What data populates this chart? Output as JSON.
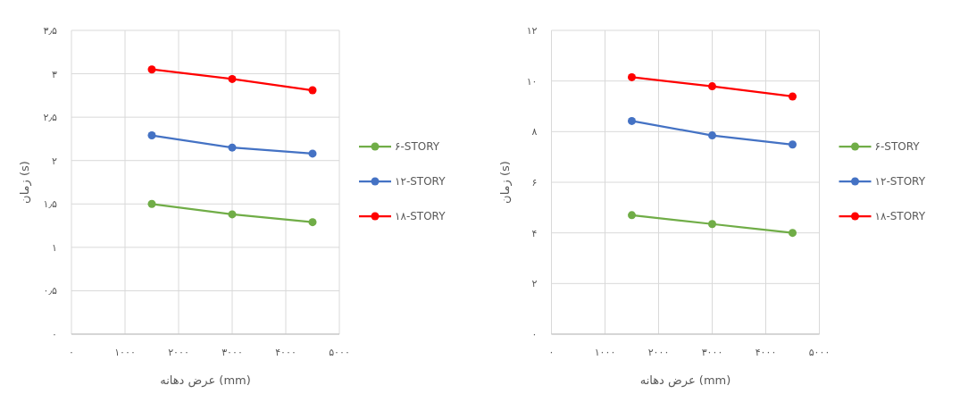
{
  "chart_data": [
    {
      "type": "line",
      "xlabel": "عرض دهانه (mm)",
      "ylabel": "زمان (s)",
      "x": [
        1500,
        3000,
        4500
      ],
      "series": [
        {
          "name": "۶-STORY",
          "color": "#70ad47",
          "values": [
            1.5,
            1.38,
            1.29
          ]
        },
        {
          "name": "۱۲-STORY",
          "color": "#4472c4",
          "values": [
            2.29,
            2.15,
            2.08
          ]
        },
        {
          "name": "۱۸-STORY",
          "color": "#ff0000",
          "values": [
            3.05,
            2.94,
            2.81
          ]
        }
      ],
      "xlim": [
        0,
        5000
      ],
      "ylim": [
        0,
        3.5
      ],
      "xticks": [
        {
          "value": 0,
          "label": "۰"
        },
        {
          "value": 1000,
          "label": "۱۰۰۰"
        },
        {
          "value": 2000,
          "label": "۲۰۰۰"
        },
        {
          "value": 3000,
          "label": "۳۰۰۰"
        },
        {
          "value": 4000,
          "label": "۴۰۰۰"
        },
        {
          "value": 5000,
          "label": "۵۰۰۰"
        }
      ],
      "yticks": [
        {
          "value": 0,
          "label": "۰"
        },
        {
          "value": 0.5,
          "label": "۰٫۵"
        },
        {
          "value": 1,
          "label": "۱"
        },
        {
          "value": 1.5,
          "label": "۱٫۵"
        },
        {
          "value": 2,
          "label": "۲"
        },
        {
          "value": 2.5,
          "label": "۲٫۵"
        },
        {
          "value": 3,
          "label": "۳"
        },
        {
          "value": 3.5,
          "label": "۳٫۵"
        }
      ],
      "grid": true,
      "legend": "right",
      "marker": "circle",
      "line_style": "solid"
    },
    {
      "type": "line",
      "xlabel": "عرض دهانه (mm)",
      "ylabel": "زمان (s)",
      "x": [
        1500,
        3000,
        4500
      ],
      "series": [
        {
          "name": "۶-STORY",
          "color": "#70ad47",
          "values": [
            4.7,
            4.35,
            4.0
          ]
        },
        {
          "name": "۱۲-STORY",
          "color": "#4472c4",
          "values": [
            8.42,
            7.85,
            7.49
          ]
        },
        {
          "name": "۱۸-STORY",
          "color": "#ff0000",
          "values": [
            10.15,
            9.79,
            9.39
          ]
        }
      ],
      "xlim": [
        0,
        5000
      ],
      "ylim": [
        0,
        12
      ],
      "xticks": [
        {
          "value": 0,
          "label": "۰"
        },
        {
          "value": 1000,
          "label": "۱۰۰۰"
        },
        {
          "value": 2000,
          "label": "۲۰۰۰"
        },
        {
          "value": 3000,
          "label": "۳۰۰۰"
        },
        {
          "value": 4000,
          "label": "۴۰۰۰"
        },
        {
          "value": 5000,
          "label": "۵۰۰۰"
        }
      ],
      "yticks": [
        {
          "value": 0,
          "label": "۰"
        },
        {
          "value": 2,
          "label": "۲"
        },
        {
          "value": 4,
          "label": "۴"
        },
        {
          "value": 6,
          "label": "۶"
        },
        {
          "value": 8,
          "label": "۸"
        },
        {
          "value": 10,
          "label": "۱۰"
        },
        {
          "value": 12,
          "label": "۱۲"
        }
      ],
      "grid": true,
      "legend": "right",
      "marker": "circle",
      "line_style": "solid"
    }
  ]
}
